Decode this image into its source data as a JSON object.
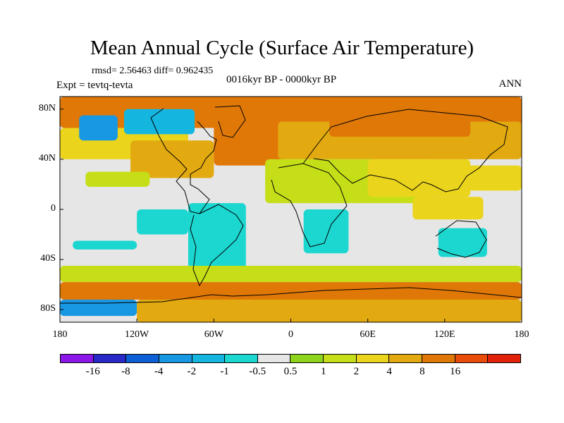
{
  "figure": {
    "title": "Mean Annual Cycle (Surface Air Temperature)",
    "stats": "rmsd= 2.56463 diff= 0.962435",
    "experiment": "Expt = tevtq-tevta",
    "period": "0016kyr BP - 0000kyr BP",
    "season": "ANN"
  },
  "chart_data": {
    "type": "heatmap",
    "title": "Mean Annual Cycle (Surface Air Temperature)",
    "variable": "Surface air temperature difference",
    "projection": "cylindrical equidistant",
    "xlim": [
      -180,
      180
    ],
    "ylim": [
      -90,
      90
    ],
    "x_ticks": [
      -180,
      -120,
      -60,
      0,
      60,
      120,
      180
    ],
    "x_tick_labels": [
      "180",
      "120W",
      "60W",
      "0",
      "60E",
      "120E",
      "180"
    ],
    "y_ticks": [
      80,
      40,
      0,
      -40,
      -80
    ],
    "y_tick_labels": [
      "80N",
      "40N",
      "0",
      "40S",
      "80S"
    ],
    "colorbar": {
      "colors": [
        "#8b18e8",
        "#2929c8",
        "#0d5fd6",
        "#1897e2",
        "#14b6e0",
        "#1cd6d0",
        "#e6e6e6",
        "#8ed41c",
        "#c6de18",
        "#ead41c",
        "#e2aa10",
        "#e07808",
        "#e84c08",
        "#e22208"
      ],
      "levels": [
        "-16",
        "-8",
        "-4",
        "-2",
        "-1",
        "-0.5",
        "0.5",
        "1",
        "2",
        "4",
        "8",
        "16"
      ]
    },
    "regions": [
      {
        "name": "background",
        "level": 6,
        "lon": [
          -180,
          180
        ],
        "lat": [
          -90,
          90
        ]
      },
      {
        "name": "arctic-north-atlantic",
        "level": 11,
        "lon": [
          -180,
          180
        ],
        "lat": [
          65,
          90
        ]
      },
      {
        "name": "north-pacific-band",
        "level": 9,
        "lon": [
          -180,
          -80
        ],
        "lat": [
          40,
          65
        ]
      },
      {
        "name": "north-america",
        "level": 10,
        "lon": [
          -125,
          -60
        ],
        "lat": [
          25,
          55
        ]
      },
      {
        "name": "north-atlantic",
        "level": 11,
        "lon": [
          -60,
          -5
        ],
        "lat": [
          35,
          70
        ]
      },
      {
        "name": "eurasia",
        "level": 10,
        "lon": [
          -10,
          180
        ],
        "lat": [
          40,
          70
        ]
      },
      {
        "name": "siberia",
        "level": 11,
        "lon": [
          30,
          140
        ],
        "lat": [
          58,
          82
        ]
      },
      {
        "name": "greenland-canada-cool",
        "level": 4,
        "lon": [
          -130,
          -75
        ],
        "lat": [
          60,
          80
        ]
      },
      {
        "name": "alaska-cool",
        "level": 3,
        "lon": [
          -165,
          -135
        ],
        "lat": [
          55,
          75
        ]
      },
      {
        "name": "sahara-asia",
        "level": 8,
        "lon": [
          -20,
          110
        ],
        "lat": [
          5,
          40
        ]
      },
      {
        "name": "india-china",
        "level": 9,
        "lon": [
          60,
          140
        ],
        "lat": [
          10,
          40
        ]
      },
      {
        "name": "western-pacific",
        "level": 9,
        "lon": [
          120,
          180
        ],
        "lat": [
          15,
          35
        ]
      },
      {
        "name": "east-pacific-band",
        "level": 8,
        "lon": [
          -160,
          -110
        ],
        "lat": [
          18,
          30
        ]
      },
      {
        "name": "south-america",
        "level": 5,
        "lon": [
          -80,
          -35
        ],
        "lat": [
          -55,
          5
        ]
      },
      {
        "name": "tropical-east-pacific",
        "level": 5,
        "lon": [
          -120,
          -80
        ],
        "lat": [
          -20,
          0
        ]
      },
      {
        "name": "south-pacific",
        "level": 5,
        "lon": [
          -170,
          -120
        ],
        "lat": [
          -32,
          -25
        ]
      },
      {
        "name": "southern-africa",
        "level": 5,
        "lon": [
          10,
          45
        ],
        "lat": [
          -35,
          0
        ]
      },
      {
        "name": "australia",
        "level": 5,
        "lon": [
          115,
          153
        ],
        "lat": [
          -38,
          -15
        ]
      },
      {
        "name": "indonesia",
        "level": 9,
        "lon": [
          95,
          150
        ],
        "lat": [
          -8,
          10
        ]
      },
      {
        "name": "southern-ocean-green",
        "level": 8,
        "lon": [
          -180,
          180
        ],
        "lat": [
          -58,
          -45
        ]
      },
      {
        "name": "southern-ocean-warm",
        "level": 11,
        "lon": [
          -180,
          180
        ],
        "lat": [
          -72,
          -58
        ]
      },
      {
        "name": "ross-sea-cool",
        "level": 3,
        "lon": [
          -180,
          -120
        ],
        "lat": [
          -85,
          -72
        ]
      },
      {
        "name": "antarctica",
        "level": 10,
        "lon": [
          -120,
          180
        ],
        "lat": [
          -90,
          -72
        ]
      }
    ]
  }
}
